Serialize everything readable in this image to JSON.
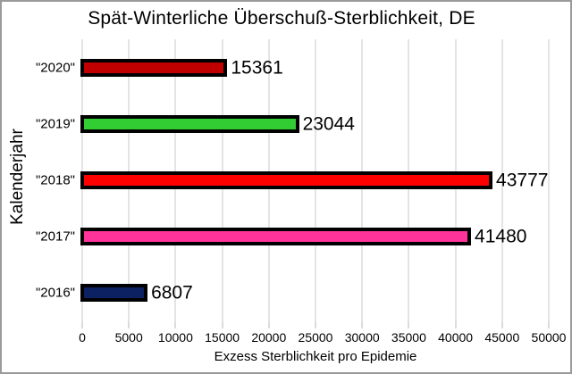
{
  "title": "Spät-Winterliche Überschuß-Sterblichkeit, DE",
  "chart_data": {
    "type": "bar",
    "orientation": "horizontal",
    "title": "Spät-Winterliche Überschuß-Sterblichkeit, DE",
    "xlabel": "Exzess Sterblichkeit pro Epidemie",
    "ylabel": "Kalenderjahr",
    "categories": [
      "\"2020\"",
      "\"2019\"",
      "\"2018\"",
      "\"2017\"",
      "\"2016\""
    ],
    "values": [
      15361,
      23044,
      43777,
      41480,
      6807
    ],
    "value_labels": [
      "15361",
      "23044",
      "43777",
      "41480",
      "6807"
    ],
    "bar_colors": [
      "#c00000",
      "#32cd32",
      "#ff0000",
      "#ff3399",
      "#0b2161"
    ],
    "bar_border_color": "#000000",
    "xlim": [
      0,
      50000
    ],
    "xticks": [
      0,
      5000,
      10000,
      15000,
      20000,
      25000,
      30000,
      35000,
      40000,
      45000,
      50000
    ],
    "grid": true,
    "gridline_color": "#e4e4e4",
    "legend": null,
    "background_color": "#ffffff"
  }
}
